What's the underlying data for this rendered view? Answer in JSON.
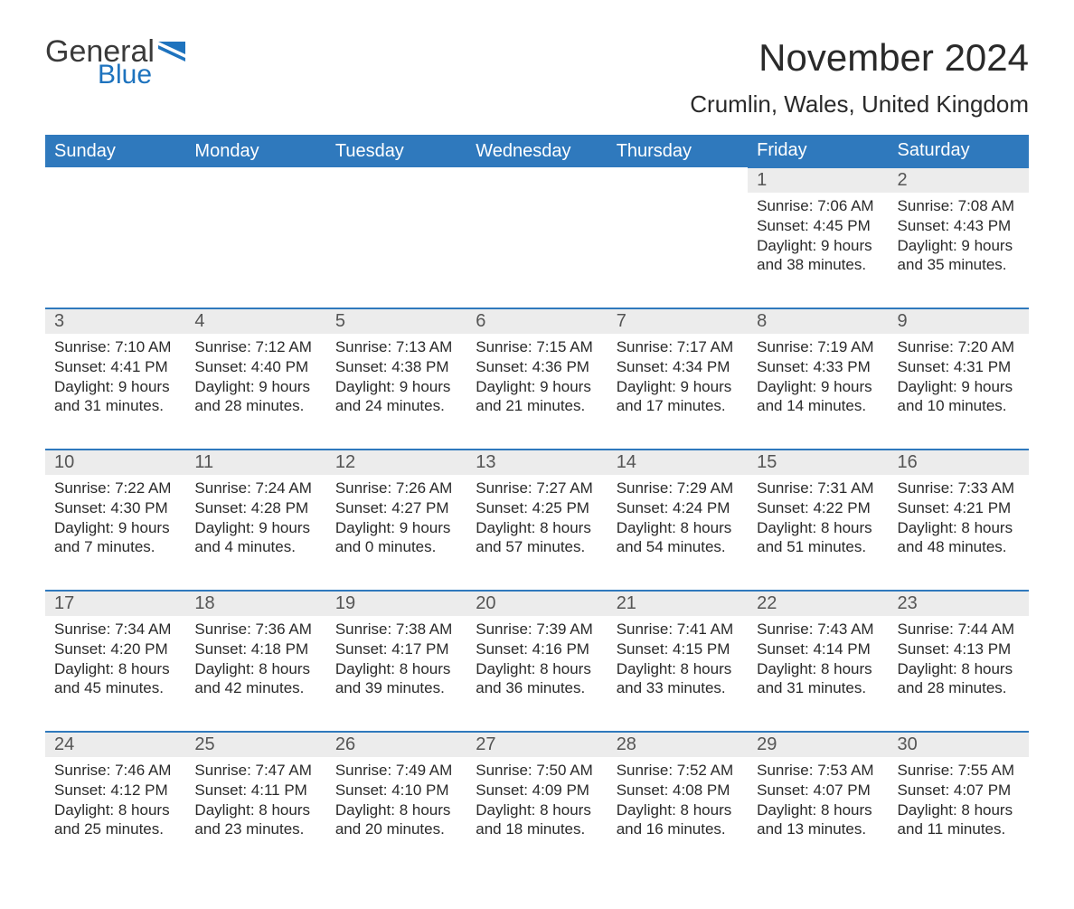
{
  "brand": {
    "word1": "General",
    "word2": "Blue",
    "word1_color": "#3a3a3a",
    "word2_color": "#1e73be",
    "flag_color": "#1e73be"
  },
  "title": "November 2024",
  "location": "Crumlin, Wales, United Kingdom",
  "colors": {
    "header_bg": "#2f79bd",
    "header_text": "#ffffff",
    "daynum_bg": "#ececec",
    "daynum_border": "#2f79bd",
    "body_text": "#2a2a2a",
    "daynum_text": "#555555",
    "page_bg": "#ffffff"
  },
  "typography": {
    "month_title_fontsize": 42,
    "location_fontsize": 26,
    "weekday_fontsize": 20,
    "daynum_fontsize": 20,
    "cell_fontsize": 17
  },
  "layout": {
    "columns": 7,
    "rows": 5,
    "leading_blanks": 5
  },
  "weekdays": [
    "Sunday",
    "Monday",
    "Tuesday",
    "Wednesday",
    "Thursday",
    "Friday",
    "Saturday"
  ],
  "days": [
    {
      "n": 1,
      "sunrise": "7:06 AM",
      "sunset": "4:45 PM",
      "daylight": "9 hours and 38 minutes."
    },
    {
      "n": 2,
      "sunrise": "7:08 AM",
      "sunset": "4:43 PM",
      "daylight": "9 hours and 35 minutes."
    },
    {
      "n": 3,
      "sunrise": "7:10 AM",
      "sunset": "4:41 PM",
      "daylight": "9 hours and 31 minutes."
    },
    {
      "n": 4,
      "sunrise": "7:12 AM",
      "sunset": "4:40 PM",
      "daylight": "9 hours and 28 minutes."
    },
    {
      "n": 5,
      "sunrise": "7:13 AM",
      "sunset": "4:38 PM",
      "daylight": "9 hours and 24 minutes."
    },
    {
      "n": 6,
      "sunrise": "7:15 AM",
      "sunset": "4:36 PM",
      "daylight": "9 hours and 21 minutes."
    },
    {
      "n": 7,
      "sunrise": "7:17 AM",
      "sunset": "4:34 PM",
      "daylight": "9 hours and 17 minutes."
    },
    {
      "n": 8,
      "sunrise": "7:19 AM",
      "sunset": "4:33 PM",
      "daylight": "9 hours and 14 minutes."
    },
    {
      "n": 9,
      "sunrise": "7:20 AM",
      "sunset": "4:31 PM",
      "daylight": "9 hours and 10 minutes."
    },
    {
      "n": 10,
      "sunrise": "7:22 AM",
      "sunset": "4:30 PM",
      "daylight": "9 hours and 7 minutes."
    },
    {
      "n": 11,
      "sunrise": "7:24 AM",
      "sunset": "4:28 PM",
      "daylight": "9 hours and 4 minutes."
    },
    {
      "n": 12,
      "sunrise": "7:26 AM",
      "sunset": "4:27 PM",
      "daylight": "9 hours and 0 minutes."
    },
    {
      "n": 13,
      "sunrise": "7:27 AM",
      "sunset": "4:25 PM",
      "daylight": "8 hours and 57 minutes."
    },
    {
      "n": 14,
      "sunrise": "7:29 AM",
      "sunset": "4:24 PM",
      "daylight": "8 hours and 54 minutes."
    },
    {
      "n": 15,
      "sunrise": "7:31 AM",
      "sunset": "4:22 PM",
      "daylight": "8 hours and 51 minutes."
    },
    {
      "n": 16,
      "sunrise": "7:33 AM",
      "sunset": "4:21 PM",
      "daylight": "8 hours and 48 minutes."
    },
    {
      "n": 17,
      "sunrise": "7:34 AM",
      "sunset": "4:20 PM",
      "daylight": "8 hours and 45 minutes."
    },
    {
      "n": 18,
      "sunrise": "7:36 AM",
      "sunset": "4:18 PM",
      "daylight": "8 hours and 42 minutes."
    },
    {
      "n": 19,
      "sunrise": "7:38 AM",
      "sunset": "4:17 PM",
      "daylight": "8 hours and 39 minutes."
    },
    {
      "n": 20,
      "sunrise": "7:39 AM",
      "sunset": "4:16 PM",
      "daylight": "8 hours and 36 minutes."
    },
    {
      "n": 21,
      "sunrise": "7:41 AM",
      "sunset": "4:15 PM",
      "daylight": "8 hours and 33 minutes."
    },
    {
      "n": 22,
      "sunrise": "7:43 AM",
      "sunset": "4:14 PM",
      "daylight": "8 hours and 31 minutes."
    },
    {
      "n": 23,
      "sunrise": "7:44 AM",
      "sunset": "4:13 PM",
      "daylight": "8 hours and 28 minutes."
    },
    {
      "n": 24,
      "sunrise": "7:46 AM",
      "sunset": "4:12 PM",
      "daylight": "8 hours and 25 minutes."
    },
    {
      "n": 25,
      "sunrise": "7:47 AM",
      "sunset": "4:11 PM",
      "daylight": "8 hours and 23 minutes."
    },
    {
      "n": 26,
      "sunrise": "7:49 AM",
      "sunset": "4:10 PM",
      "daylight": "8 hours and 20 minutes."
    },
    {
      "n": 27,
      "sunrise": "7:50 AM",
      "sunset": "4:09 PM",
      "daylight": "8 hours and 18 minutes."
    },
    {
      "n": 28,
      "sunrise": "7:52 AM",
      "sunset": "4:08 PM",
      "daylight": "8 hours and 16 minutes."
    },
    {
      "n": 29,
      "sunrise": "7:53 AM",
      "sunset": "4:07 PM",
      "daylight": "8 hours and 13 minutes."
    },
    {
      "n": 30,
      "sunrise": "7:55 AM",
      "sunset": "4:07 PM",
      "daylight": "8 hours and 11 minutes."
    }
  ],
  "labels": {
    "sunrise": "Sunrise:",
    "sunset": "Sunset:",
    "daylight": "Daylight:"
  }
}
